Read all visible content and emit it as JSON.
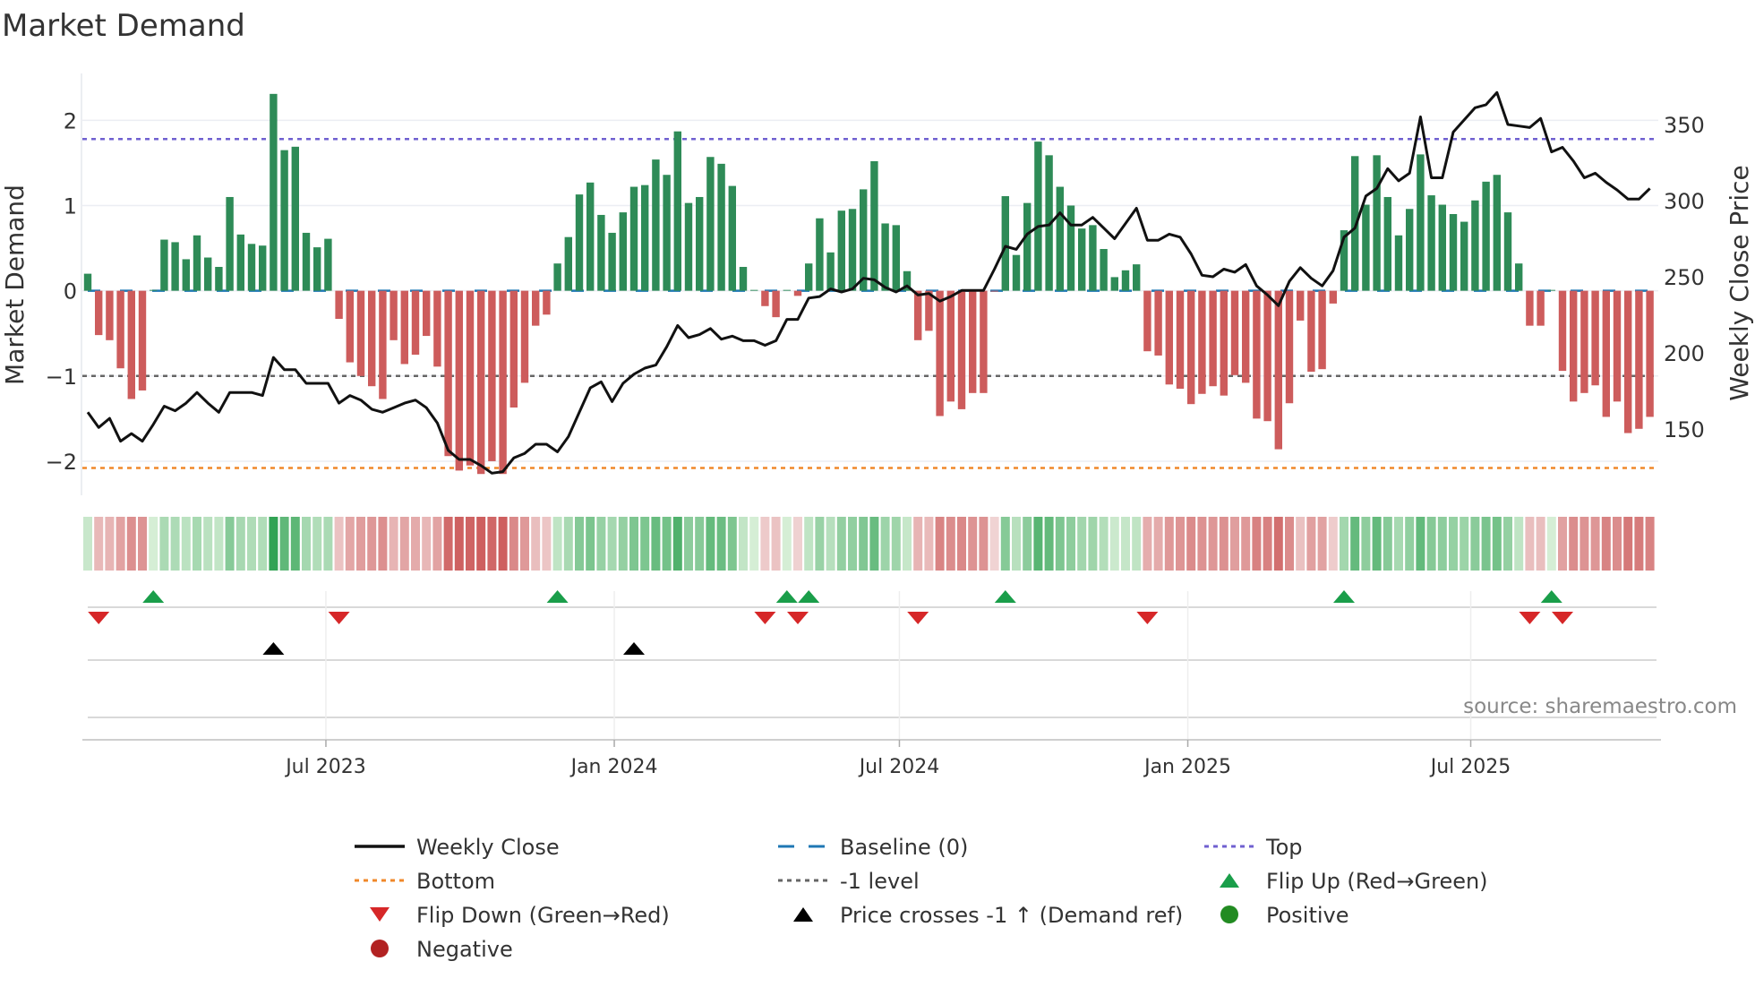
{
  "title": "Market Demand",
  "source": "source: sharemaestro.com",
  "colors": {
    "green_bar": "#2e8b57",
    "red_bar": "#cd5c5c",
    "baseline": "#1f77b4",
    "top": "#7060d0",
    "bottom": "#f0882a",
    "minus1": "#666666",
    "flip_up": "#1a9e4a",
    "flip_down": "#d62728",
    "price_cross": "#000000",
    "positive": "#228b22",
    "negative": "#b22222",
    "close_line": "#111111"
  },
  "legend": [
    {
      "label": "Weekly Close",
      "icon": "solid-line",
      "color": "#111111"
    },
    {
      "label": "Baseline (0)",
      "icon": "dashed-line",
      "color": "#1f77b4"
    },
    {
      "label": "Top",
      "icon": "dotted-line",
      "color": "#7060d0"
    },
    {
      "label": "Bottom",
      "icon": "dotted-line",
      "color": "#f0882a"
    },
    {
      "label": "-1 level",
      "icon": "dotted-line",
      "color": "#666666"
    },
    {
      "label": "Flip Up (Red→Green)",
      "icon": "triangle-up",
      "color": "#1a9e4a"
    },
    {
      "label": "Flip Down (Green→Red)",
      "icon": "triangle-down",
      "color": "#d62728"
    },
    {
      "label": "Price crosses -1 ↑ (Demand ref)",
      "icon": "triangle-up",
      "color": "#000000"
    },
    {
      "label": "Positive",
      "icon": "circle",
      "color": "#228b22"
    },
    {
      "label": "Negative",
      "icon": "circle",
      "color": "#b22222"
    }
  ],
  "chart_data": {
    "type": "bar",
    "title": "Market Demand",
    "ylabel": "Market Demand",
    "y2label": "Weekly Close Price",
    "ylim": [
      -2.4,
      2.55
    ],
    "y2lim": [
      106.5,
      383.5
    ],
    "yticks": [
      {
        "v": 2,
        "label": "2"
      },
      {
        "v": 1,
        "label": "1"
      },
      {
        "v": 0,
        "label": "0"
      },
      {
        "v": -1,
        "label": "−1"
      },
      {
        "v": -2,
        "label": "−2"
      }
    ],
    "y2ticks": [
      {
        "v": 350,
        "label": "350"
      },
      {
        "v": 300,
        "label": "300"
      },
      {
        "v": 250,
        "label": "250"
      },
      {
        "v": 200,
        "label": "200"
      },
      {
        "v": 150,
        "label": "150"
      }
    ],
    "xticks": [
      {
        "week": 21.8,
        "label": "Jul 2023"
      },
      {
        "week": 48.2,
        "label": "Jan 2024"
      },
      {
        "week": 74.3,
        "label": "Jul 2024"
      },
      {
        "week": 100.7,
        "label": "Jan 2025"
      },
      {
        "week": 126.6,
        "label": "Jul 2025"
      }
    ],
    "levels": {
      "top": 1.78,
      "bottom": -2.08,
      "minus1": -1,
      "baseline": 0
    },
    "demand": [
      0.2,
      -0.52,
      -0.58,
      -0.91,
      -1.27,
      -1.17,
      0.01,
      0.6,
      0.57,
      0.37,
      0.65,
      0.39,
      0.28,
      1.1,
      0.66,
      0.55,
      0.53,
      2.31,
      1.65,
      1.69,
      0.68,
      0.51,
      0.61,
      -0.33,
      -0.84,
      -1.0,
      -1.12,
      -1.27,
      -0.58,
      -0.86,
      -0.75,
      -0.53,
      -0.89,
      -1.94,
      -2.11,
      -2.05,
      -2.15,
      -2.0,
      -2.15,
      -1.37,
      -1.08,
      -0.41,
      -0.28,
      0.32,
      0.63,
      1.13,
      1.27,
      0.89,
      0.68,
      0.92,
      1.22,
      1.24,
      1.54,
      1.36,
      1.87,
      1.03,
      1.1,
      1.57,
      1.49,
      1.23,
      0.28,
      0.01,
      -0.18,
      -0.31,
      0.01,
      -0.06,
      0.32,
      0.85,
      0.45,
      0.94,
      0.96,
      1.19,
      1.52,
      0.79,
      0.77,
      0.23,
      -0.58,
      -0.47,
      -1.47,
      -1.3,
      -1.39,
      -1.2,
      -1.2,
      -0.01,
      1.11,
      0.42,
      1.03,
      1.75,
      1.59,
      1.22,
      1.0,
      0.73,
      0.77,
      0.49,
      0.16,
      0.24,
      0.31,
      -0.71,
      -0.76,
      -1.1,
      -1.15,
      -1.33,
      -1.21,
      -1.12,
      -1.23,
      -0.99,
      -1.08,
      -1.5,
      -1.53,
      -1.86,
      -1.32,
      -0.35,
      -0.95,
      -0.92,
      -0.15,
      0.71,
      1.58,
      1.01,
      1.59,
      1.1,
      0.65,
      0.96,
      1.6,
      1.12,
      1.01,
      0.9,
      0.81,
      1.06,
      1.28,
      1.36,
      0.92,
      0.32,
      -0.41,
      -0.41,
      0.01,
      -0.94,
      -1.3,
      -1.2,
      -1.11,
      -1.48,
      -1.3,
      -1.67,
      -1.62,
      -1.48
    ],
    "close": [
      161,
      151,
      157,
      142,
      147,
      142,
      153,
      165,
      162,
      167,
      174,
      167,
      161,
      174,
      174,
      174,
      172,
      197,
      189,
      189,
      180,
      180,
      180,
      167,
      172,
      169,
      163,
      161,
      164,
      167,
      169,
      164,
      154,
      136,
      130,
      130,
      126,
      121,
      122,
      131,
      134,
      140,
      140,
      135,
      145,
      161,
      177,
      181,
      168,
      180,
      186,
      190,
      192,
      204,
      218,
      210,
      212,
      216,
      209,
      211,
      208,
      208,
      205,
      208,
      222,
      222,
      236,
      237,
      242,
      240,
      242,
      249,
      248,
      243,
      240,
      244,
      238,
      239,
      234,
      237,
      241,
      241,
      241,
      255,
      270,
      268,
      278,
      283,
      284,
      292,
      284,
      284,
      289,
      282,
      275,
      285,
      295,
      274,
      274,
      278,
      276,
      265,
      251,
      250,
      255,
      253,
      258,
      244,
      238,
      231,
      247,
      256,
      249,
      244,
      254,
      276,
      282,
      303,
      308,
      321,
      313,
      318,
      355,
      315,
      315,
      345,
      353,
      361,
      363,
      371,
      350,
      349,
      348,
      354,
      332,
      335,
      326,
      315,
      318,
      312,
      307,
      301,
      301,
      308
    ],
    "flip_up": [
      6,
      43,
      64,
      66,
      84,
      115,
      134
    ],
    "flip_down": [
      1,
      23,
      62,
      65,
      76,
      97,
      132,
      135
    ],
    "price_cross_up": [
      17,
      50
    ]
  }
}
